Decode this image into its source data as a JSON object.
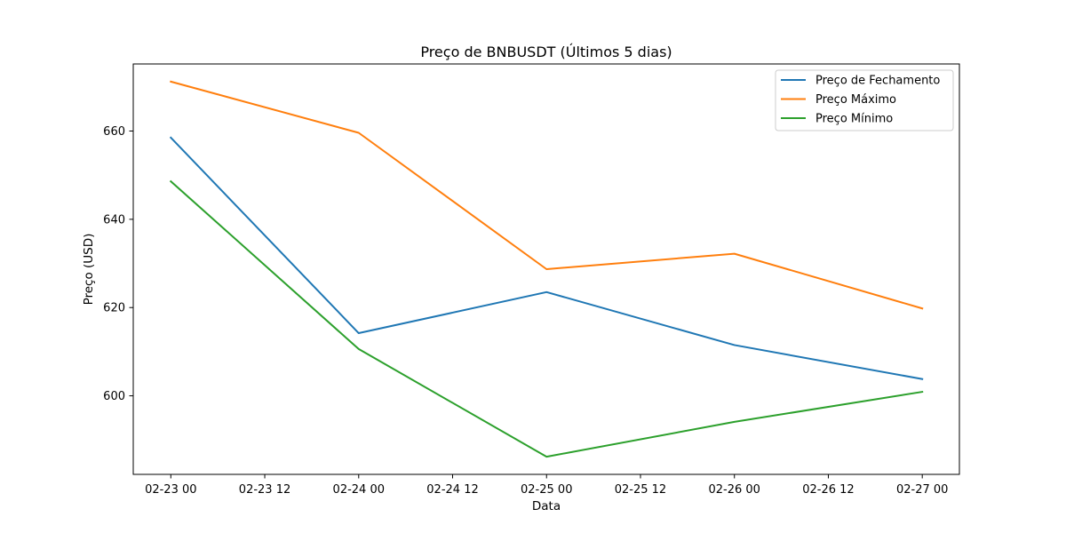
{
  "chart_data": {
    "type": "line",
    "title": "Preço de BNBUSDT (Últimos 5 dias)",
    "xlabel": "Data",
    "ylabel": "Preço (USD)",
    "x": [
      "02-23 00",
      "02-24 00",
      "02-25 00",
      "02-26 00",
      "02-27 00"
    ],
    "x_ticks": [
      "02-23 00",
      "02-23 12",
      "02-24 00",
      "02-24 12",
      "02-25 00",
      "02-25 12",
      "02-26 00",
      "02-26 12",
      "02-27 00"
    ],
    "y_ticks": [
      600,
      620,
      640,
      660
    ],
    "ylim": [
      582.2,
      675.2
    ],
    "grid": false,
    "legend_position": "top-right",
    "series": [
      {
        "name": "Preço de Fechamento",
        "color": "#1f77b4",
        "values": [
          658.5,
          614.2,
          623.5,
          611.5,
          603.8
        ]
      },
      {
        "name": "Preço Máximo",
        "color": "#ff7f0e",
        "values": [
          671.2,
          659.6,
          628.7,
          632.2,
          619.8
        ]
      },
      {
        "name": "Preço Mínimo",
        "color": "#2ca02c",
        "values": [
          648.6,
          610.6,
          586.2,
          594.1,
          600.9
        ]
      }
    ]
  }
}
